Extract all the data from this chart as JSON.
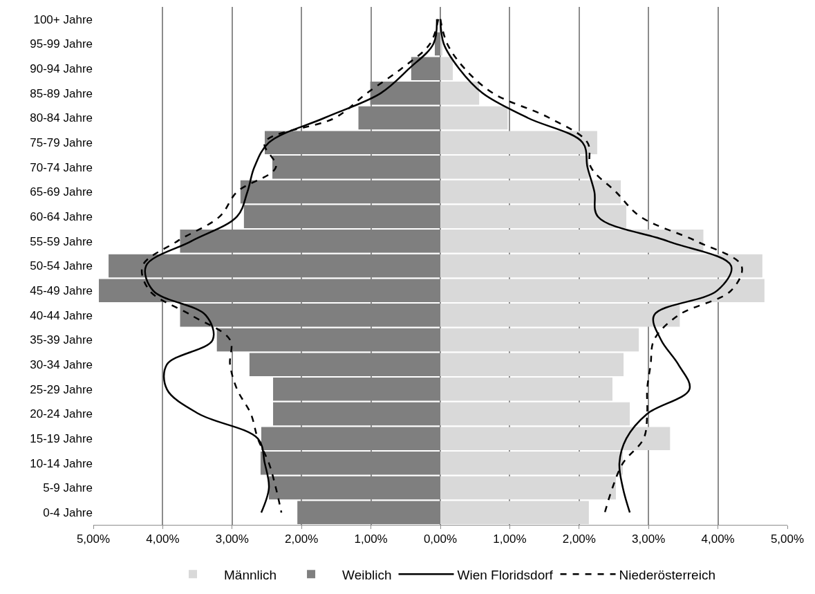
{
  "chart_data": {
    "type": "bar",
    "orientation": "horizontal",
    "categories": [
      "100+ Jahre",
      "95-99 Jahre",
      "90-94 Jahre",
      "85-89 Jahre",
      "80-84 Jahre",
      "75-79 Jahre",
      "70-74 Jahre",
      "65-69 Jahre",
      "60-64 Jahre",
      "55-59 Jahre",
      "50-54 Jahre",
      "45-49 Jahre",
      "40-44 Jahre",
      "35-39 Jahre",
      "30-34 Jahre",
      "25-29 Jahre",
      "20-24 Jahre",
      "15-19 Jahre",
      "10-14 Jahre",
      "5-9 Jahre",
      "0-4 Jahre"
    ],
    "series": [
      {
        "name": "Männlich",
        "color": "#d9d9d9",
        "values": [
          null,
          0.03,
          0.18,
          0.56,
          0.97,
          2.26,
          2.14,
          2.6,
          2.68,
          3.79,
          4.64,
          4.67,
          3.45,
          2.86,
          2.64,
          2.48,
          2.73,
          3.31,
          2.63,
          2.53,
          2.14
        ]
      },
      {
        "name": "Weiblich",
        "color": "#7f7f7f",
        "values": [
          -0.01,
          -0.08,
          -0.42,
          -1.01,
          -1.18,
          -2.53,
          -2.42,
          -2.88,
          -2.83,
          -3.75,
          -4.78,
          -4.92,
          -3.75,
          -3.22,
          -2.75,
          -2.41,
          -2.41,
          -2.58,
          -2.59,
          -2.47,
          -2.06
        ]
      },
      {
        "name": "Wien Floridsdorf",
        "type": "line",
        "color": "#000000",
        "line_style": "solid",
        "values": [
          -0.05,
          -0.1,
          -0.45,
          -0.86,
          -1.67,
          -2.47,
          -2.68,
          -2.78,
          -2.93,
          -3.59,
          -4.24,
          -4.14,
          -3.38,
          -3.28,
          -3.94,
          -3.94,
          -3.48,
          -2.63,
          -2.53,
          -2.47,
          -2.58
        ]
      },
      {
        "type": "line",
        "color": "#000000",
        "line_style": "solid",
        "values": [
          0,
          0.05,
          0.27,
          0.61,
          1.26,
          2.05,
          2.12,
          2.22,
          2.27,
          3.28,
          4.19,
          3.99,
          3.08,
          3.18,
          3.43,
          3.59,
          2.98,
          2.68,
          2.58,
          2.63,
          2.73
        ]
      },
      {
        "name": "Niederösterreich",
        "type": "line",
        "color": "#000000",
        "line_style": "dashed",
        "values": [
          -0.03,
          -0.15,
          -0.56,
          -1.06,
          -1.52,
          -2.53,
          -2.37,
          -2.93,
          -3.18,
          -3.79,
          -4.29,
          -4.19,
          -3.59,
          -3.03,
          -3.03,
          -2.93,
          -2.73,
          -2.63,
          -2.47,
          -2.37,
          -2.29
        ]
      },
      {
        "type": "line",
        "color": "#000000",
        "line_style": "dashed",
        "values": [
          0,
          0.1,
          0.35,
          0.76,
          1.57,
          2.12,
          2.17,
          2.53,
          2.88,
          3.69,
          4.34,
          4.19,
          3.43,
          3.08,
          3.03,
          2.98,
          2.98,
          2.93,
          2.63,
          2.48,
          2.37
        ]
      }
    ],
    "xlim": [
      -5,
      5
    ],
    "xticks": [
      {
        "value": -5,
        "label": "5,00%"
      },
      {
        "value": -4,
        "label": "4,00%"
      },
      {
        "value": -3,
        "label": "3,00%"
      },
      {
        "value": -2,
        "label": "2,00%"
      },
      {
        "value": -1,
        "label": "1,00%"
      },
      {
        "value": 0,
        "label": "0,00%"
      },
      {
        "value": 1,
        "label": "1,00%"
      },
      {
        "value": 2,
        "label": "2,00%"
      },
      {
        "value": 3,
        "label": "3,00%"
      },
      {
        "value": 4,
        "label": "4,00%"
      },
      {
        "value": 5,
        "label": "5,00%"
      }
    ],
    "stacked": true,
    "grid": "x",
    "legend": "bottom",
    "marker": "none"
  }
}
